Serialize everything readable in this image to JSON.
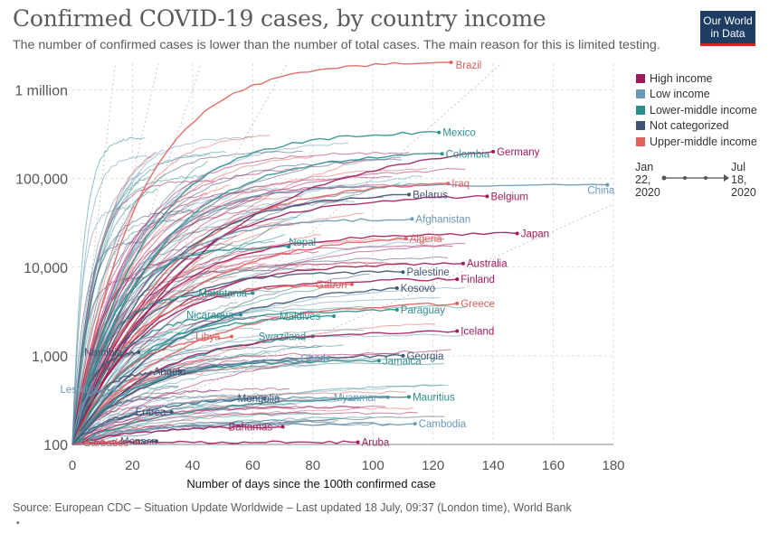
{
  "header": {
    "title": "Confirmed COVID-19 cases, by country income",
    "subtitle": "The number of confirmed cases is lower than the number of total cases. The main reason for this is limited testing."
  },
  "logo": {
    "line1": "Our World",
    "line2": "in Data"
  },
  "footer": {
    "source": "Source: European CDC – Situation Update Worldwide – Last updated 18 July, 09:37 (London time), World Bank",
    "note": "•"
  },
  "timeline": {
    "start_month": "Jan",
    "start_day": "22,",
    "start_year": "2020",
    "end_month": "Jul",
    "end_day": "18,",
    "end_year": "2020"
  },
  "colors": {
    "High income": "#a2195b",
    "Low income": "#6b98b3",
    "Lower-middle income": "#2e8e8e",
    "Not categorized": "#3f5475",
    "Upper-middle income": "#e0605e"
  },
  "chart_data": {
    "type": "line",
    "xlabel": "Number of days since the 100th confirmed case",
    "ylabel": "",
    "xlim": [
      0,
      180
    ],
    "ylim": [
      100,
      2000000
    ],
    "yscale": "log",
    "xticks": [
      0,
      20,
      40,
      60,
      80,
      100,
      120,
      140,
      160,
      180
    ],
    "yticks": [
      {
        "v": 100,
        "label": "100"
      },
      {
        "v": 1000,
        "label": "1,000"
      },
      {
        "v": 10000,
        "label": "10,000"
      },
      {
        "v": 100000,
        "label": "100,000"
      },
      {
        "v": 1000000,
        "label": "1 million"
      }
    ],
    "legend": {
      "position": "right",
      "entries": [
        "High income",
        "Low income",
        "Lower-middle income",
        "Not categorized",
        "Upper-middle income"
      ]
    },
    "series": [
      {
        "name": "Brazil",
        "group": "Upper-middle income",
        "end_x": 126,
        "end_y": 2046000
      },
      {
        "name": "Mexico",
        "group": "Lower-middle income",
        "end_x": 122,
        "end_y": 331000
      },
      {
        "name": "Colombia",
        "group": "Lower-middle income",
        "end_x": 123,
        "end_y": 190000
      },
      {
        "name": "Germany",
        "group": "High income",
        "end_x": 140,
        "end_y": 201000
      },
      {
        "name": "China",
        "group": "Low income",
        "end_x": 178,
        "end_y": 85000
      },
      {
        "name": "Iraq",
        "group": "Upper-middle income",
        "end_x": 125,
        "end_y": 88000
      },
      {
        "name": "Belarus",
        "group": "Not categorized",
        "end_x": 112,
        "end_y": 66000
      },
      {
        "name": "Belgium",
        "group": "High income",
        "end_x": 138,
        "end_y": 63000
      },
      {
        "name": "Afghanistan",
        "group": "Low income",
        "end_x": 113,
        "end_y": 35000
      },
      {
        "name": "Japan",
        "group": "High income",
        "end_x": 148,
        "end_y": 24000
      },
      {
        "name": "Algeria",
        "group": "Upper-middle income",
        "end_x": 111,
        "end_y": 21000
      },
      {
        "name": "Nepal",
        "group": "Lower-middle income",
        "end_x": 72,
        "end_y": 17000
      },
      {
        "name": "Australia",
        "group": "High income",
        "end_x": 130,
        "end_y": 11000
      },
      {
        "name": "Palestine",
        "group": "Not categorized",
        "end_x": 110,
        "end_y": 8800
      },
      {
        "name": "Finland",
        "group": "High income",
        "end_x": 128,
        "end_y": 7300
      },
      {
        "name": "Gabon",
        "group": "Upper-middle income",
        "end_x": 93,
        "end_y": 6400
      },
      {
        "name": "Kosovo",
        "group": "Not categorized",
        "end_x": 108,
        "end_y": 5800
      },
      {
        "name": "Mauritania",
        "group": "Lower-middle income",
        "end_x": 60,
        "end_y": 5100
      },
      {
        "name": "Greece",
        "group": "Upper-middle income",
        "end_x": 128,
        "end_y": 3900
      },
      {
        "name": "Paraguay",
        "group": "Lower-middle income",
        "end_x": 108,
        "end_y": 3300
      },
      {
        "name": "Nicaragua",
        "group": "Lower-middle income",
        "end_x": 56,
        "end_y": 2900
      },
      {
        "name": "Maldives",
        "group": "Lower-middle income",
        "end_x": 87,
        "end_y": 2800
      },
      {
        "name": "Libya",
        "group": "Upper-middle income",
        "end_x": 53,
        "end_y": 1650
      },
      {
        "name": "Swaziland",
        "group": "Lower-middle income",
        "end_x": 80,
        "end_y": 1650
      },
      {
        "name": "Iceland",
        "group": "High income",
        "end_x": 128,
        "end_y": 1900
      },
      {
        "name": "Namibia",
        "group": "Not categorized",
        "end_x": 22,
        "end_y": 1100
      },
      {
        "name": "Georgia",
        "group": "Not categorized",
        "end_x": 110,
        "end_y": 1000
      },
      {
        "name": "Chad",
        "group": "Low income",
        "end_x": 85,
        "end_y": 940
      },
      {
        "name": "Jamaica",
        "group": "Lower-middle income",
        "end_x": 102,
        "end_y": 880
      },
      {
        "name": "Angola",
        "group": "Not categorized",
        "end_x": 36,
        "end_y": 670
      },
      {
        "name": "Lesotho",
        "group": "Low income",
        "end_x": 14,
        "end_y": 420
      },
      {
        "name": "Mongolia",
        "group": "Not categorized",
        "end_x": 64,
        "end_y": 330
      },
      {
        "name": "Myanmar",
        "group": "Low income",
        "end_x": 105,
        "end_y": 340
      },
      {
        "name": "Mauritius",
        "group": "Lower-middle income",
        "end_x": 112,
        "end_y": 344
      },
      {
        "name": "Eritrea",
        "group": "Not categorized",
        "end_x": 33,
        "end_y": 232
      },
      {
        "name": "Cambodia",
        "group": "Low income",
        "end_x": 114,
        "end_y": 171
      },
      {
        "name": "Bahamas",
        "group": "High income",
        "end_x": 70,
        "end_y": 158
      },
      {
        "name": "Monaco",
        "group": "Not categorized",
        "end_x": 28,
        "end_y": 109
      },
      {
        "name": "Barbados",
        "group": "Upper-middle income",
        "end_x": 22,
        "end_y": 105
      },
      {
        "name": "Aruba",
        "group": "High income",
        "end_x": 95,
        "end_y": 106
      }
    ]
  }
}
